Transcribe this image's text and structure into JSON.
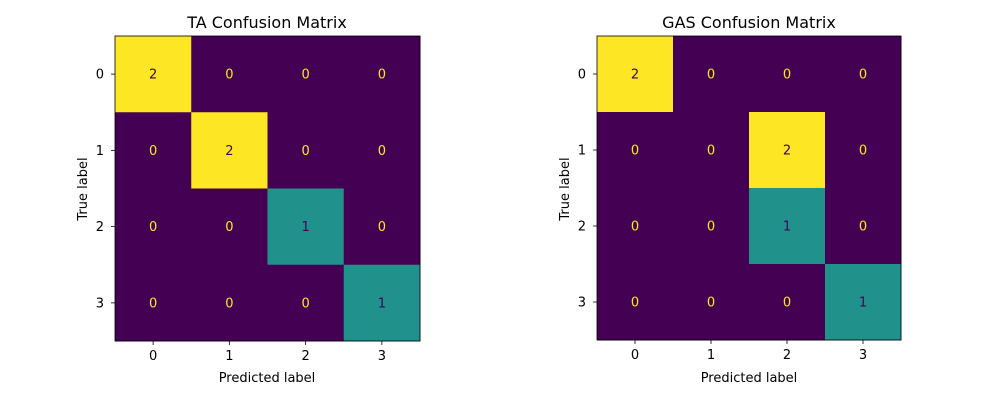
{
  "colors": {
    "low": "#440154",
    "mid": "#21918c",
    "high": "#fde725",
    "text_on_low": "#fde725",
    "text_on_high": "#440154",
    "axis": "#000000"
  },
  "chart_data": [
    {
      "type": "heatmap",
      "title": "TA Confusion Matrix",
      "xlabel": "Predicted label",
      "ylabel": "True label",
      "x_ticks": [
        "0",
        "1",
        "2",
        "3"
      ],
      "y_ticks": [
        "0",
        "1",
        "2",
        "3"
      ],
      "matrix": [
        [
          2,
          0,
          0,
          0
        ],
        [
          0,
          2,
          0,
          0
        ],
        [
          0,
          0,
          1,
          0
        ],
        [
          0,
          0,
          0,
          1
        ]
      ],
      "value_range": [
        0,
        2
      ],
      "colormap": "viridis",
      "grid": false
    },
    {
      "type": "heatmap",
      "title": "GAS Confusion Matrix",
      "xlabel": "Predicted label",
      "ylabel": "True label",
      "x_ticks": [
        "0",
        "1",
        "2",
        "3"
      ],
      "y_ticks": [
        "0",
        "1",
        "2",
        "3"
      ],
      "matrix": [
        [
          2,
          0,
          0,
          0
        ],
        [
          0,
          0,
          2,
          0
        ],
        [
          0,
          0,
          1,
          0
        ],
        [
          0,
          0,
          0,
          1
        ]
      ],
      "value_range": [
        0,
        2
      ],
      "colormap": "viridis",
      "grid": false
    }
  ]
}
